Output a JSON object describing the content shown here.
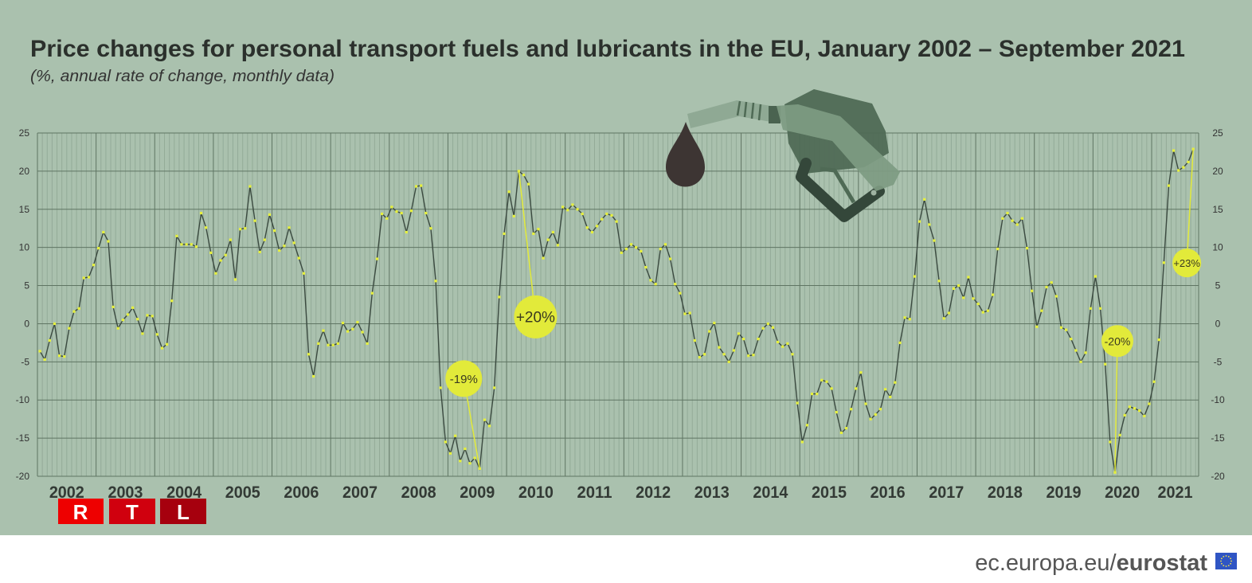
{
  "header": {
    "title": "Price changes for personal transport fuels and lubricants in the EU, January 2002 – September 2021",
    "subtitle": "(%, annual rate of change, monthly data)"
  },
  "branding": {
    "rtl_letters": [
      "R",
      "T",
      "L"
    ],
    "rtl_colors": [
      "#ee0000",
      "#d0000e",
      "#a6000e"
    ],
    "footer_prefix": "ec.europa.eu/",
    "footer_brand": "eurostat"
  },
  "colors": {
    "background": "#aac1ae",
    "line": "#3b4a40",
    "points": "#e6f03c",
    "annotation": "#e2ea3a"
  },
  "chart_data": {
    "type": "line",
    "title": "Price changes for personal transport fuels and lubricants in the EU, January 2002 – September 2021",
    "subtitle": "(%, annual rate of change, monthly data)",
    "xlabel": "",
    "ylabel": "",
    "ylim": [
      -20,
      25
    ],
    "y_ticks": [
      25,
      20,
      15,
      10,
      5,
      0,
      -5,
      -10,
      -15,
      -20
    ],
    "y_tick_labels": [
      "25",
      "20",
      "15",
      "10",
      "5",
      "0",
      "-5",
      "-10",
      "-15",
      "-20"
    ],
    "x_tick_labels": [
      "2002",
      "2003",
      "2004",
      "2005",
      "2006",
      "2007",
      "2008",
      "2009",
      "2010",
      "2011",
      "2012",
      "2013",
      "2014",
      "2015",
      "2016",
      "2017",
      "2018",
      "2019",
      "2020",
      "2021"
    ],
    "start": "2002-01",
    "end": "2021-09",
    "grid": true,
    "legend": "none",
    "series": [
      {
        "name": "Personal transport fuels and lubricants",
        "values": [
          -3.6,
          -4.7,
          -2.2,
          0.0,
          -4.2,
          -4.3,
          -0.6,
          1.6,
          2.0,
          6.0,
          6.1,
          7.7,
          9.9,
          12.0,
          10.8,
          2.2,
          -0.6,
          0.5,
          1.2,
          2.1,
          0.6,
          -1.3,
          1.1,
          1.0,
          -1.4,
          -3.2,
          -2.7,
          3.0,
          11.5,
          10.4,
          10.4,
          10.4,
          10.1,
          14.5,
          12.6,
          9.3,
          6.6,
          8.3,
          9.0,
          11.0,
          5.8,
          12.4,
          12.5,
          18.0,
          13.5,
          9.4,
          11.0,
          14.3,
          12.2,
          9.6,
          10.2,
          12.6,
          10.6,
          8.6,
          6.6,
          -4.0,
          -6.9,
          -2.6,
          -0.9,
          -2.8,
          -2.8,
          -2.6,
          0.1,
          -1.0,
          -0.7,
          0.2,
          -1.1,
          -2.6,
          4.0,
          8.5,
          14.4,
          13.8,
          15.3,
          14.7,
          14.5,
          12.0,
          14.8,
          18.0,
          18.1,
          14.5,
          12.5,
          5.6,
          -8.4,
          -15.5,
          -17.0,
          -14.7,
          -18.0,
          -16.4,
          -18.3,
          -17.6,
          -19.0,
          -12.6,
          -13.4,
          -8.4,
          3.5,
          11.8,
          17.3,
          14.1,
          20.0,
          19.5,
          18.3,
          11.8,
          12.4,
          8.6,
          11.0,
          12.0,
          10.3,
          15.3,
          14.9,
          15.6,
          15.0,
          14.4,
          12.6,
          12.0,
          12.8,
          13.7,
          14.4,
          14.2,
          13.4,
          9.3,
          9.8,
          10.4,
          10.0,
          9.5,
          7.4,
          5.7,
          5.2,
          9.8,
          10.4,
          8.5,
          5.2,
          4.0,
          1.3,
          1.4,
          -2.2,
          -4.4,
          -4.0,
          -1.0,
          0.1,
          -3.1,
          -4.0,
          -5.0,
          -3.5,
          -1.3,
          -2.0,
          -4.2,
          -4.1,
          -2.0,
          -0.6,
          0.0,
          -0.5,
          -2.4,
          -3.0,
          -2.6,
          -4.0,
          -10.4,
          -15.5,
          -13.3,
          -9.2,
          -9.2,
          -7.4,
          -7.6,
          -8.5,
          -11.6,
          -14.3,
          -13.7,
          -11.2,
          -8.5,
          -6.4,
          -10.5,
          -12.5,
          -11.9,
          -11.2,
          -8.6,
          -9.6,
          -7.7,
          -2.5,
          0.8,
          0.6,
          6.2,
          13.4,
          16.3,
          13.0,
          10.9,
          5.6,
          0.7,
          1.4,
          4.6,
          5.0,
          3.4,
          6.1,
          3.3,
          2.6,
          1.5,
          1.7,
          3.8,
          9.8,
          13.8,
          14.5,
          13.5,
          13.0,
          13.8,
          9.9,
          4.3,
          -0.4,
          1.7,
          4.8,
          5.4,
          3.6,
          -0.5,
          -0.8,
          -2.0,
          -3.5,
          -5.0,
          -3.8,
          2.0,
          6.2,
          2.0,
          -5.3,
          -15.5,
          -19.5,
          -14.6,
          -12.0,
          -10.9,
          -11.1,
          -11.4,
          -12.1,
          -10.5,
          -7.6,
          -2.1,
          8.0,
          18.1,
          22.7,
          20.1,
          20.5,
          21.2,
          22.9
        ]
      }
    ],
    "annotations": [
      {
        "label": "-19%",
        "period": "2009-07"
      },
      {
        "label": "+20%",
        "period": "2010-03"
      },
      {
        "label": "-20%",
        "period": "2020-05"
      },
      {
        "label": "+23%",
        "period": "2021-09"
      }
    ]
  }
}
